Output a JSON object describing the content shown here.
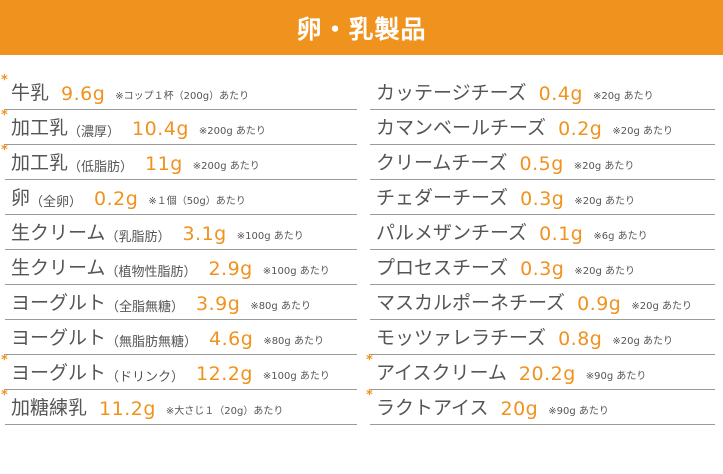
{
  "header": {
    "title": "卵・乳製品"
  },
  "colors": {
    "accent": "#f0921e",
    "text": "#555555",
    "rule": "#9a9a9a"
  },
  "left": [
    {
      "star": "*",
      "name": "牛乳",
      "sub": "",
      "amount": "9.6g",
      "note": "※コップ１杯（200g）あたり"
    },
    {
      "star": "*",
      "name": "加工乳",
      "sub": "（濃厚）",
      "amount": "10.4g",
      "note": "※200g あたり"
    },
    {
      "star": "*",
      "name": "加工乳",
      "sub": "（低脂肪）",
      "amount": "11g",
      "note": "※200g あたり"
    },
    {
      "star": "",
      "name": "卵",
      "sub": "（全卵）",
      "amount": "0.2g",
      "note": "※１個（50g）あたり"
    },
    {
      "star": "",
      "name": "生クリーム",
      "sub": "（乳脂肪）",
      "amount": "3.1g",
      "note": "※100g あたり"
    },
    {
      "star": "",
      "name": "生クリーム",
      "sub": "（植物性脂肪）",
      "amount": "2.9g",
      "note": "※100g あたり"
    },
    {
      "star": "",
      "name": "ヨーグルト",
      "sub": "（全脂無糖）",
      "amount": "3.9g",
      "note": "※80g あたり"
    },
    {
      "star": "",
      "name": "ヨーグルト",
      "sub": "（無脂肪無糖）",
      "amount": "4.6g",
      "note": "※80g あたり"
    },
    {
      "star": "*",
      "name": "ヨーグルト",
      "sub": "（ドリンク）",
      "amount": "12.2g",
      "note": "※100g あたり"
    },
    {
      "star": "*",
      "name": "加糖練乳",
      "sub": "",
      "amount": "11.2g",
      "note": "※大さじ１（20g）あたり"
    }
  ],
  "right": [
    {
      "star": "",
      "name": "カッテージチーズ",
      "sub": "",
      "amount": "0.4g",
      "note": "※20g あたり"
    },
    {
      "star": "",
      "name": "カマンベールチーズ",
      "sub": "",
      "amount": "0.2g",
      "note": "※20g あたり"
    },
    {
      "star": "",
      "name": "クリームチーズ",
      "sub": "",
      "amount": "0.5g",
      "note": "※20g あたり"
    },
    {
      "star": "",
      "name": "チェダーチーズ",
      "sub": "",
      "amount": "0.3g",
      "note": "※20g あたり"
    },
    {
      "star": "",
      "name": "パルメザンチーズ",
      "sub": "",
      "amount": "0.1g",
      "note": "※6g あたり"
    },
    {
      "star": "",
      "name": "プロセスチーズ",
      "sub": "",
      "amount": "0.3g",
      "note": "※20g あたり"
    },
    {
      "star": "",
      "name": "マスカルポーネチーズ",
      "sub": "",
      "amount": "0.9g",
      "note": "※20g あたり"
    },
    {
      "star": "",
      "name": "モッツァレラチーズ",
      "sub": "",
      "amount": "0.8g",
      "note": "※20g あたり"
    },
    {
      "star": "*",
      "name": "アイスクリーム",
      "sub": "",
      "amount": "20.2g",
      "note": "※90g あたり"
    },
    {
      "star": "*",
      "name": "ラクトアイス",
      "sub": "",
      "amount": "20g",
      "note": "※90g あたり"
    }
  ]
}
